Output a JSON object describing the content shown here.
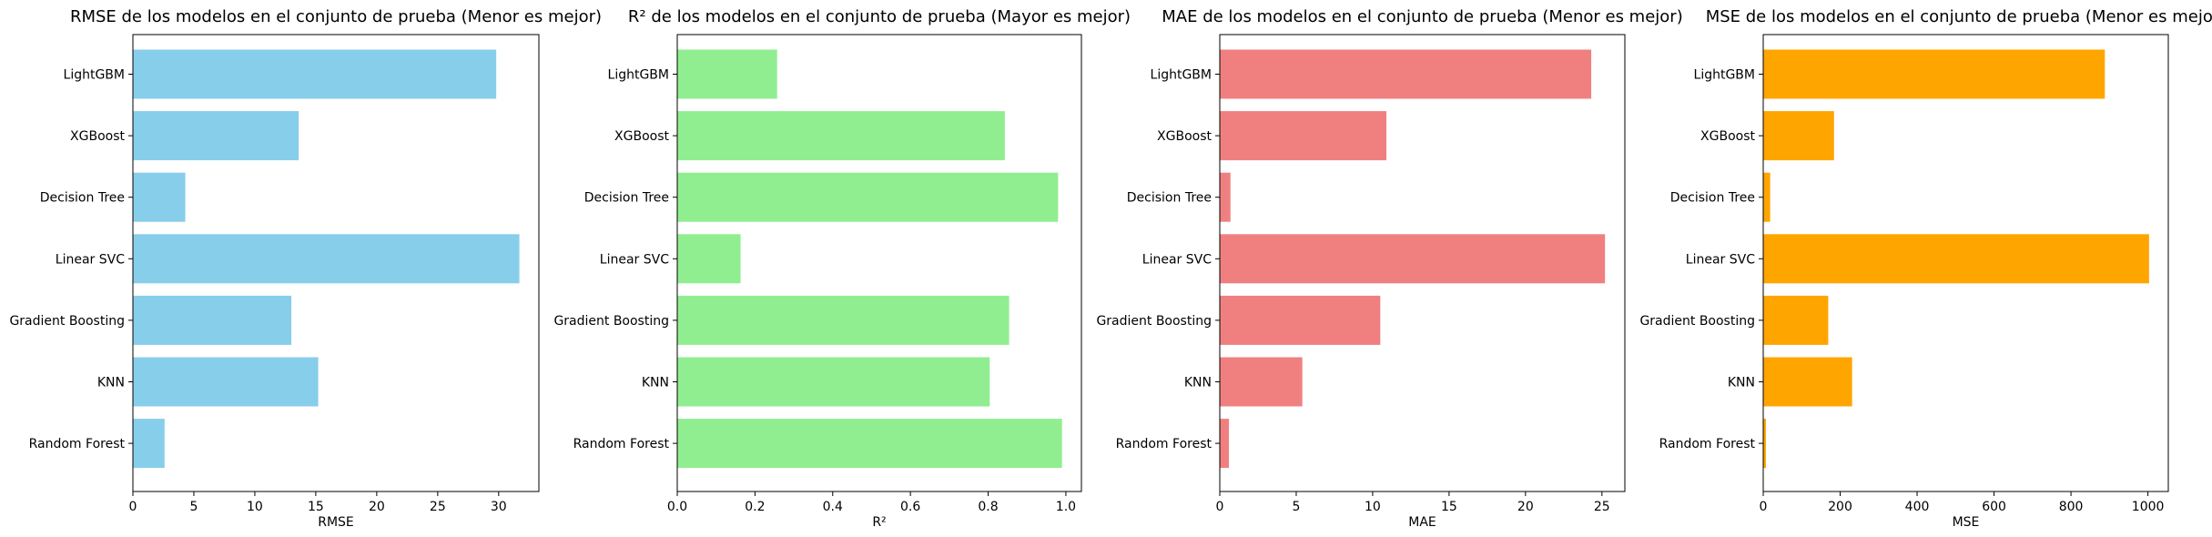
{
  "chart_data": [
    {
      "type": "bar",
      "orientation": "horizontal",
      "title": "RMSE de los modelos en el conjunto de prueba (Menor es mejor)",
      "xlabel": "RMSE",
      "categories": [
        "LightGBM",
        "XGBoost",
        "Decision Tree",
        "Linear SVC",
        "Gradient Boosting",
        "KNN",
        "Random Forest"
      ],
      "values": [
        29.8,
        13.6,
        4.3,
        31.7,
        13.0,
        15.2,
        2.6
      ],
      "xlim": [
        0,
        33.3
      ],
      "xticks": [
        0,
        5,
        10,
        15,
        20,
        25,
        30
      ],
      "color": "#87ceeb",
      "grid": false
    },
    {
      "type": "bar",
      "orientation": "horizontal",
      "title": "R² de los modelos en el conjunto de prueba (Mayor es mejor)",
      "xlabel": "R²",
      "categories": [
        "LightGBM",
        "XGBoost",
        "Decision Tree",
        "Linear SVC",
        "Gradient Boosting",
        "KNN",
        "Random Forest"
      ],
      "values": [
        0.257,
        0.843,
        0.98,
        0.163,
        0.854,
        0.804,
        0.99
      ],
      "xlim": [
        0,
        1.04
      ],
      "xticks": [
        0.0,
        0.2,
        0.4,
        0.6,
        0.8,
        1.0
      ],
      "color": "#90ee90",
      "grid": false
    },
    {
      "type": "bar",
      "orientation": "horizontal",
      "title": "MAE de los modelos en el conjunto de prueba (Menor es mejor)",
      "xlabel": "MAE",
      "categories": [
        "LightGBM",
        "XGBoost",
        "Decision Tree",
        "Linear SVC",
        "Gradient Boosting",
        "KNN",
        "Random Forest"
      ],
      "values": [
        24.3,
        10.9,
        0.7,
        25.2,
        10.5,
        5.4,
        0.6
      ],
      "xlim": [
        0,
        26.5
      ],
      "xticks": [
        0,
        5,
        10,
        15,
        20,
        25
      ],
      "color": "#f08080",
      "grid": false
    },
    {
      "type": "bar",
      "orientation": "horizontal",
      "title": "MSE de los modelos en el conjunto de prueba (Menor es mejor)",
      "xlabel": "MSE",
      "categories": [
        "LightGBM",
        "XGBoost",
        "Decision Tree",
        "Linear SVC",
        "Gradient Boosting",
        "KNN",
        "Random Forest"
      ],
      "values": [
        888,
        184,
        18,
        1003,
        169,
        231,
        7
      ],
      "xlim": [
        0,
        1053
      ],
      "xticks": [
        0,
        200,
        400,
        600,
        800,
        1000
      ],
      "color": "#ffa500",
      "grid": false
    }
  ]
}
